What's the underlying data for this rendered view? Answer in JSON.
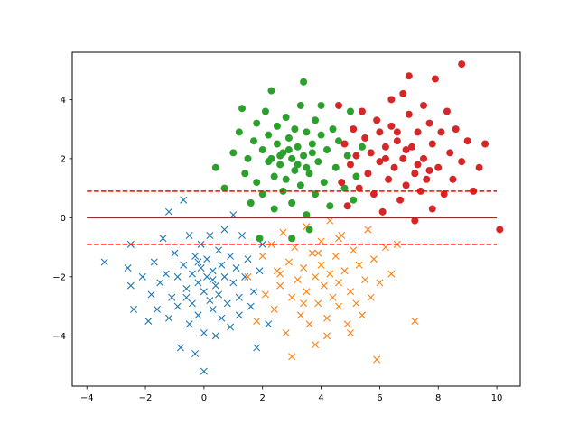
{
  "chart_data": {
    "type": "scatter",
    "title": "",
    "xlabel": "",
    "ylabel": "",
    "xlim": [
      -4.5,
      10.8
    ],
    "ylim": [
      -5.7,
      5.6
    ],
    "x_ticks": [
      -4,
      -2,
      0,
      2,
      4,
      6,
      8,
      10
    ],
    "y_ticks": [
      -4,
      -2,
      0,
      2,
      4
    ],
    "grid": false,
    "series": [
      {
        "color": "#1f77b4",
        "marker": "x",
        "cluster_center": [
          0.0,
          -2.0
        ],
        "points": [
          [
            -3.4,
            -1.5
          ],
          [
            -2.6,
            -1.7
          ],
          [
            -2.5,
            -2.3
          ],
          [
            -2.4,
            -3.1
          ],
          [
            -2.5,
            -0.9
          ],
          [
            -2.1,
            -2.0
          ],
          [
            -1.9,
            -3.5
          ],
          [
            -1.8,
            -2.6
          ],
          [
            -1.7,
            -1.5
          ],
          [
            -1.6,
            -3.1
          ],
          [
            -1.5,
            -2.2
          ],
          [
            -1.4,
            -0.7
          ],
          [
            -1.3,
            -1.9
          ],
          [
            -1.2,
            -3.4
          ],
          [
            -1.2,
            0.2
          ],
          [
            -1.1,
            -2.7
          ],
          [
            -1.0,
            -1.2
          ],
          [
            -0.9,
            -2.0
          ],
          [
            -0.9,
            -3.0
          ],
          [
            -0.8,
            -4.4
          ],
          [
            -0.7,
            0.6
          ],
          [
            -0.7,
            -1.6
          ],
          [
            -0.6,
            -2.4
          ],
          [
            -0.5,
            -3.6
          ],
          [
            -0.5,
            -0.6
          ],
          [
            -0.4,
            -1.9
          ],
          [
            -0.4,
            -2.9
          ],
          [
            -0.3,
            -1.3
          ],
          [
            -0.3,
            -4.6
          ],
          [
            -0.2,
            -2.2
          ],
          [
            -0.2,
            -3.3
          ],
          [
            -0.1,
            -0.9
          ],
          [
            -0.1,
            -1.7
          ],
          [
            0.0,
            -2.5
          ],
          [
            0.0,
            -5.2
          ],
          [
            0.0,
            -3.9
          ],
          [
            0.1,
            -1.4
          ],
          [
            0.1,
            -2.0
          ],
          [
            0.2,
            -2.8
          ],
          [
            0.2,
            -0.6
          ],
          [
            0.3,
            -1.8
          ],
          [
            0.3,
            -3.1
          ],
          [
            0.4,
            -2.3
          ],
          [
            0.4,
            -4.0
          ],
          [
            0.5,
            -1.1
          ],
          [
            0.5,
            -2.6
          ],
          [
            0.6,
            -1.6
          ],
          [
            0.6,
            -3.4
          ],
          [
            0.7,
            -2.0
          ],
          [
            0.7,
            -0.4
          ],
          [
            0.8,
            -2.9
          ],
          [
            0.9,
            -1.3
          ],
          [
            0.9,
            -3.7
          ],
          [
            1.0,
            -2.2
          ],
          [
            1.0,
            0.1
          ],
          [
            1.1,
            -1.7
          ],
          [
            1.2,
            -2.7
          ],
          [
            1.2,
            -3.3
          ],
          [
            1.3,
            -0.6
          ],
          [
            1.4,
            -2.0
          ],
          [
            1.5,
            -1.4
          ],
          [
            1.6,
            -3.0
          ],
          [
            1.7,
            -2.5
          ],
          [
            1.8,
            -4.4
          ],
          [
            1.9,
            -1.8
          ],
          [
            2.0,
            -0.9
          ],
          [
            2.2,
            -3.6
          ],
          [
            -0.2,
            -1.5
          ],
          [
            0.3,
            -2.1
          ],
          [
            -0.6,
            -2.7
          ]
        ]
      },
      {
        "color": "#ff7f0e",
        "marker": "x",
        "cluster_center": [
          4.0,
          -2.0
        ],
        "points": [
          [
            1.5,
            -2.0
          ],
          [
            1.8,
            -3.5
          ],
          [
            2.0,
            -1.3
          ],
          [
            2.1,
            -2.6
          ],
          [
            2.3,
            -0.9
          ],
          [
            2.4,
            -3.1
          ],
          [
            2.5,
            -1.8
          ],
          [
            2.6,
            -2.3
          ],
          [
            2.7,
            -0.5
          ],
          [
            2.8,
            -3.9
          ],
          [
            2.9,
            -1.5
          ],
          [
            3.0,
            -2.7
          ],
          [
            3.0,
            -4.7
          ],
          [
            3.1,
            -1.0
          ],
          [
            3.2,
            -2.1
          ],
          [
            3.3,
            -3.3
          ],
          [
            3.4,
            -1.7
          ],
          [
            3.5,
            -0.3
          ],
          [
            3.5,
            -2.5
          ],
          [
            3.6,
            -3.6
          ],
          [
            3.7,
            -1.2
          ],
          [
            3.8,
            -2.0
          ],
          [
            3.8,
            -4.3
          ],
          [
            3.9,
            -2.9
          ],
          [
            4.0,
            -1.6
          ],
          [
            4.0,
            -0.8
          ],
          [
            4.1,
            -2.3
          ],
          [
            4.2,
            -3.4
          ],
          [
            4.3,
            -1.9
          ],
          [
            4.3,
            -0.1
          ],
          [
            4.4,
            -2.7
          ],
          [
            4.5,
            -1.3
          ],
          [
            4.6,
            -3.0
          ],
          [
            4.6,
            -2.2
          ],
          [
            4.7,
            -0.6
          ],
          [
            4.8,
            -1.8
          ],
          [
            4.9,
            -3.6
          ],
          [
            5.0,
            -2.5
          ],
          [
            5.1,
            -1.1
          ],
          [
            5.2,
            -2.9
          ],
          [
            5.3,
            -1.6
          ],
          [
            5.4,
            -3.3
          ],
          [
            5.5,
            -2.1
          ],
          [
            5.6,
            -0.4
          ],
          [
            5.7,
            -2.7
          ],
          [
            5.8,
            -1.4
          ],
          [
            5.9,
            -4.8
          ],
          [
            6.0,
            -2.2
          ],
          [
            6.2,
            -1.0
          ],
          [
            6.4,
            -1.9
          ],
          [
            6.6,
            -0.9
          ],
          [
            7.2,
            -3.5
          ],
          [
            4.2,
            -4.0
          ],
          [
            3.4,
            -2.9
          ],
          [
            4.6,
            -0.7
          ],
          [
            5.0,
            -3.9
          ],
          [
            3.9,
            -1.2
          ],
          [
            2.6,
            -1.9
          ]
        ]
      },
      {
        "color": "#2ca02c",
        "marker": "o",
        "cluster_center": [
          3.0,
          2.0
        ],
        "points": [
          [
            0.4,
            1.7
          ],
          [
            0.7,
            1.0
          ],
          [
            1.0,
            2.2
          ],
          [
            1.2,
            2.9
          ],
          [
            1.3,
            3.7
          ],
          [
            1.4,
            1.5
          ],
          [
            1.5,
            2.0
          ],
          [
            1.6,
            0.5
          ],
          [
            1.7,
            2.6
          ],
          [
            1.8,
            3.2
          ],
          [
            1.8,
            1.2
          ],
          [
            1.9,
            -0.7
          ],
          [
            2.0,
            2.3
          ],
          [
            2.0,
            0.8
          ],
          [
            2.1,
            3.6
          ],
          [
            2.2,
            1.9
          ],
          [
            2.2,
            2.8
          ],
          [
            2.3,
            4.3
          ],
          [
            2.4,
            1.4
          ],
          [
            2.4,
            0.3
          ],
          [
            2.5,
            2.5
          ],
          [
            2.5,
            3.1
          ],
          [
            2.6,
            1.8
          ],
          [
            2.7,
            0.9
          ],
          [
            2.7,
            2.2
          ],
          [
            2.8,
            3.4
          ],
          [
            2.8,
            1.3
          ],
          [
            2.9,
            2.7
          ],
          [
            3.0,
            0.5
          ],
          [
            3.0,
            2.0
          ],
          [
            3.0,
            -0.7
          ],
          [
            3.1,
            3.0
          ],
          [
            3.1,
            1.6
          ],
          [
            3.2,
            2.4
          ],
          [
            3.3,
            3.8
          ],
          [
            3.3,
            1.1
          ],
          [
            3.4,
            2.1
          ],
          [
            3.4,
            4.6
          ],
          [
            3.5,
            0.1
          ],
          [
            3.5,
            2.9
          ],
          [
            3.6,
            1.5
          ],
          [
            3.6,
            -0.4
          ],
          [
            3.7,
            2.5
          ],
          [
            3.8,
            3.3
          ],
          [
            3.8,
            0.8
          ],
          [
            3.9,
            1.9
          ],
          [
            4.0,
            2.8
          ],
          [
            4.0,
            3.8
          ],
          [
            4.1,
            1.2
          ],
          [
            4.2,
            2.3
          ],
          [
            4.3,
            0.4
          ],
          [
            4.4,
            3.0
          ],
          [
            4.5,
            1.7
          ],
          [
            4.6,
            2.6
          ],
          [
            4.8,
            1.0
          ],
          [
            4.9,
            2.1
          ],
          [
            5.0,
            3.6
          ],
          [
            5.1,
            0.6
          ],
          [
            5.2,
            1.4
          ],
          [
            5.4,
            2.4
          ],
          [
            3.2,
            1.8
          ],
          [
            2.9,
            2.3
          ],
          [
            2.6,
            2.1
          ],
          [
            3.5,
            1.7
          ],
          [
            2.3,
            2.0
          ],
          [
            3.7,
            2.2
          ]
        ]
      },
      {
        "color": "#d62728",
        "marker": "o",
        "cluster_center": [
          7.0,
          2.0
        ],
        "points": [
          [
            4.6,
            3.8
          ],
          [
            4.7,
            1.2
          ],
          [
            4.8,
            2.5
          ],
          [
            4.9,
            0.4
          ],
          [
            5.0,
            1.8
          ],
          [
            5.1,
            3.0
          ],
          [
            5.2,
            2.1
          ],
          [
            5.3,
            1.0
          ],
          [
            5.4,
            3.6
          ],
          [
            5.5,
            2.7
          ],
          [
            5.6,
            1.5
          ],
          [
            5.7,
            2.2
          ],
          [
            5.8,
            0.8
          ],
          [
            5.9,
            3.3
          ],
          [
            6.0,
            1.9
          ],
          [
            6.0,
            2.9
          ],
          [
            6.1,
            0.2
          ],
          [
            6.2,
            2.4
          ],
          [
            6.3,
            1.3
          ],
          [
            6.4,
            4.0
          ],
          [
            6.4,
            3.1
          ],
          [
            6.5,
            1.7
          ],
          [
            6.6,
            2.6
          ],
          [
            6.7,
            0.6
          ],
          [
            6.8,
            4.2
          ],
          [
            6.8,
            2.0
          ],
          [
            6.9,
            1.1
          ],
          [
            7.0,
            4.8
          ],
          [
            7.0,
            3.5
          ],
          [
            7.1,
            2.4
          ],
          [
            7.2,
            1.5
          ],
          [
            7.2,
            -0.1
          ],
          [
            7.3,
            2.9
          ],
          [
            7.4,
            0.9
          ],
          [
            7.5,
            3.8
          ],
          [
            7.5,
            2.0
          ],
          [
            7.6,
            1.3
          ],
          [
            7.7,
            3.2
          ],
          [
            7.8,
            2.5
          ],
          [
            7.8,
            0.3
          ],
          [
            7.9,
            4.7
          ],
          [
            8.0,
            1.7
          ],
          [
            8.1,
            2.9
          ],
          [
            8.2,
            0.8
          ],
          [
            8.3,
            3.6
          ],
          [
            8.4,
            2.2
          ],
          [
            8.5,
            1.3
          ],
          [
            8.6,
            3.0
          ],
          [
            8.8,
            5.2
          ],
          [
            8.8,
            1.9
          ],
          [
            9.0,
            2.6
          ],
          [
            9.2,
            0.9
          ],
          [
            9.4,
            1.7
          ],
          [
            9.6,
            2.5
          ],
          [
            10.1,
            -0.4
          ],
          [
            6.9,
            2.3
          ],
          [
            7.3,
            1.8
          ],
          [
            6.6,
            2.9
          ],
          [
            7.7,
            1.6
          ],
          [
            6.2,
            2.0
          ]
        ]
      }
    ],
    "lines": [
      {
        "color": "#ff0000",
        "style": "solid",
        "x": [
          -4,
          10
        ],
        "y": [
          0,
          0
        ]
      },
      {
        "color": "#ff0000",
        "style": "dashed",
        "x": [
          -4,
          10
        ],
        "y": [
          0.9,
          0.9
        ]
      },
      {
        "color": "#ff0000",
        "style": "dashed",
        "x": [
          -4,
          10
        ],
        "y": [
          -0.9,
          -0.9
        ]
      }
    ]
  }
}
